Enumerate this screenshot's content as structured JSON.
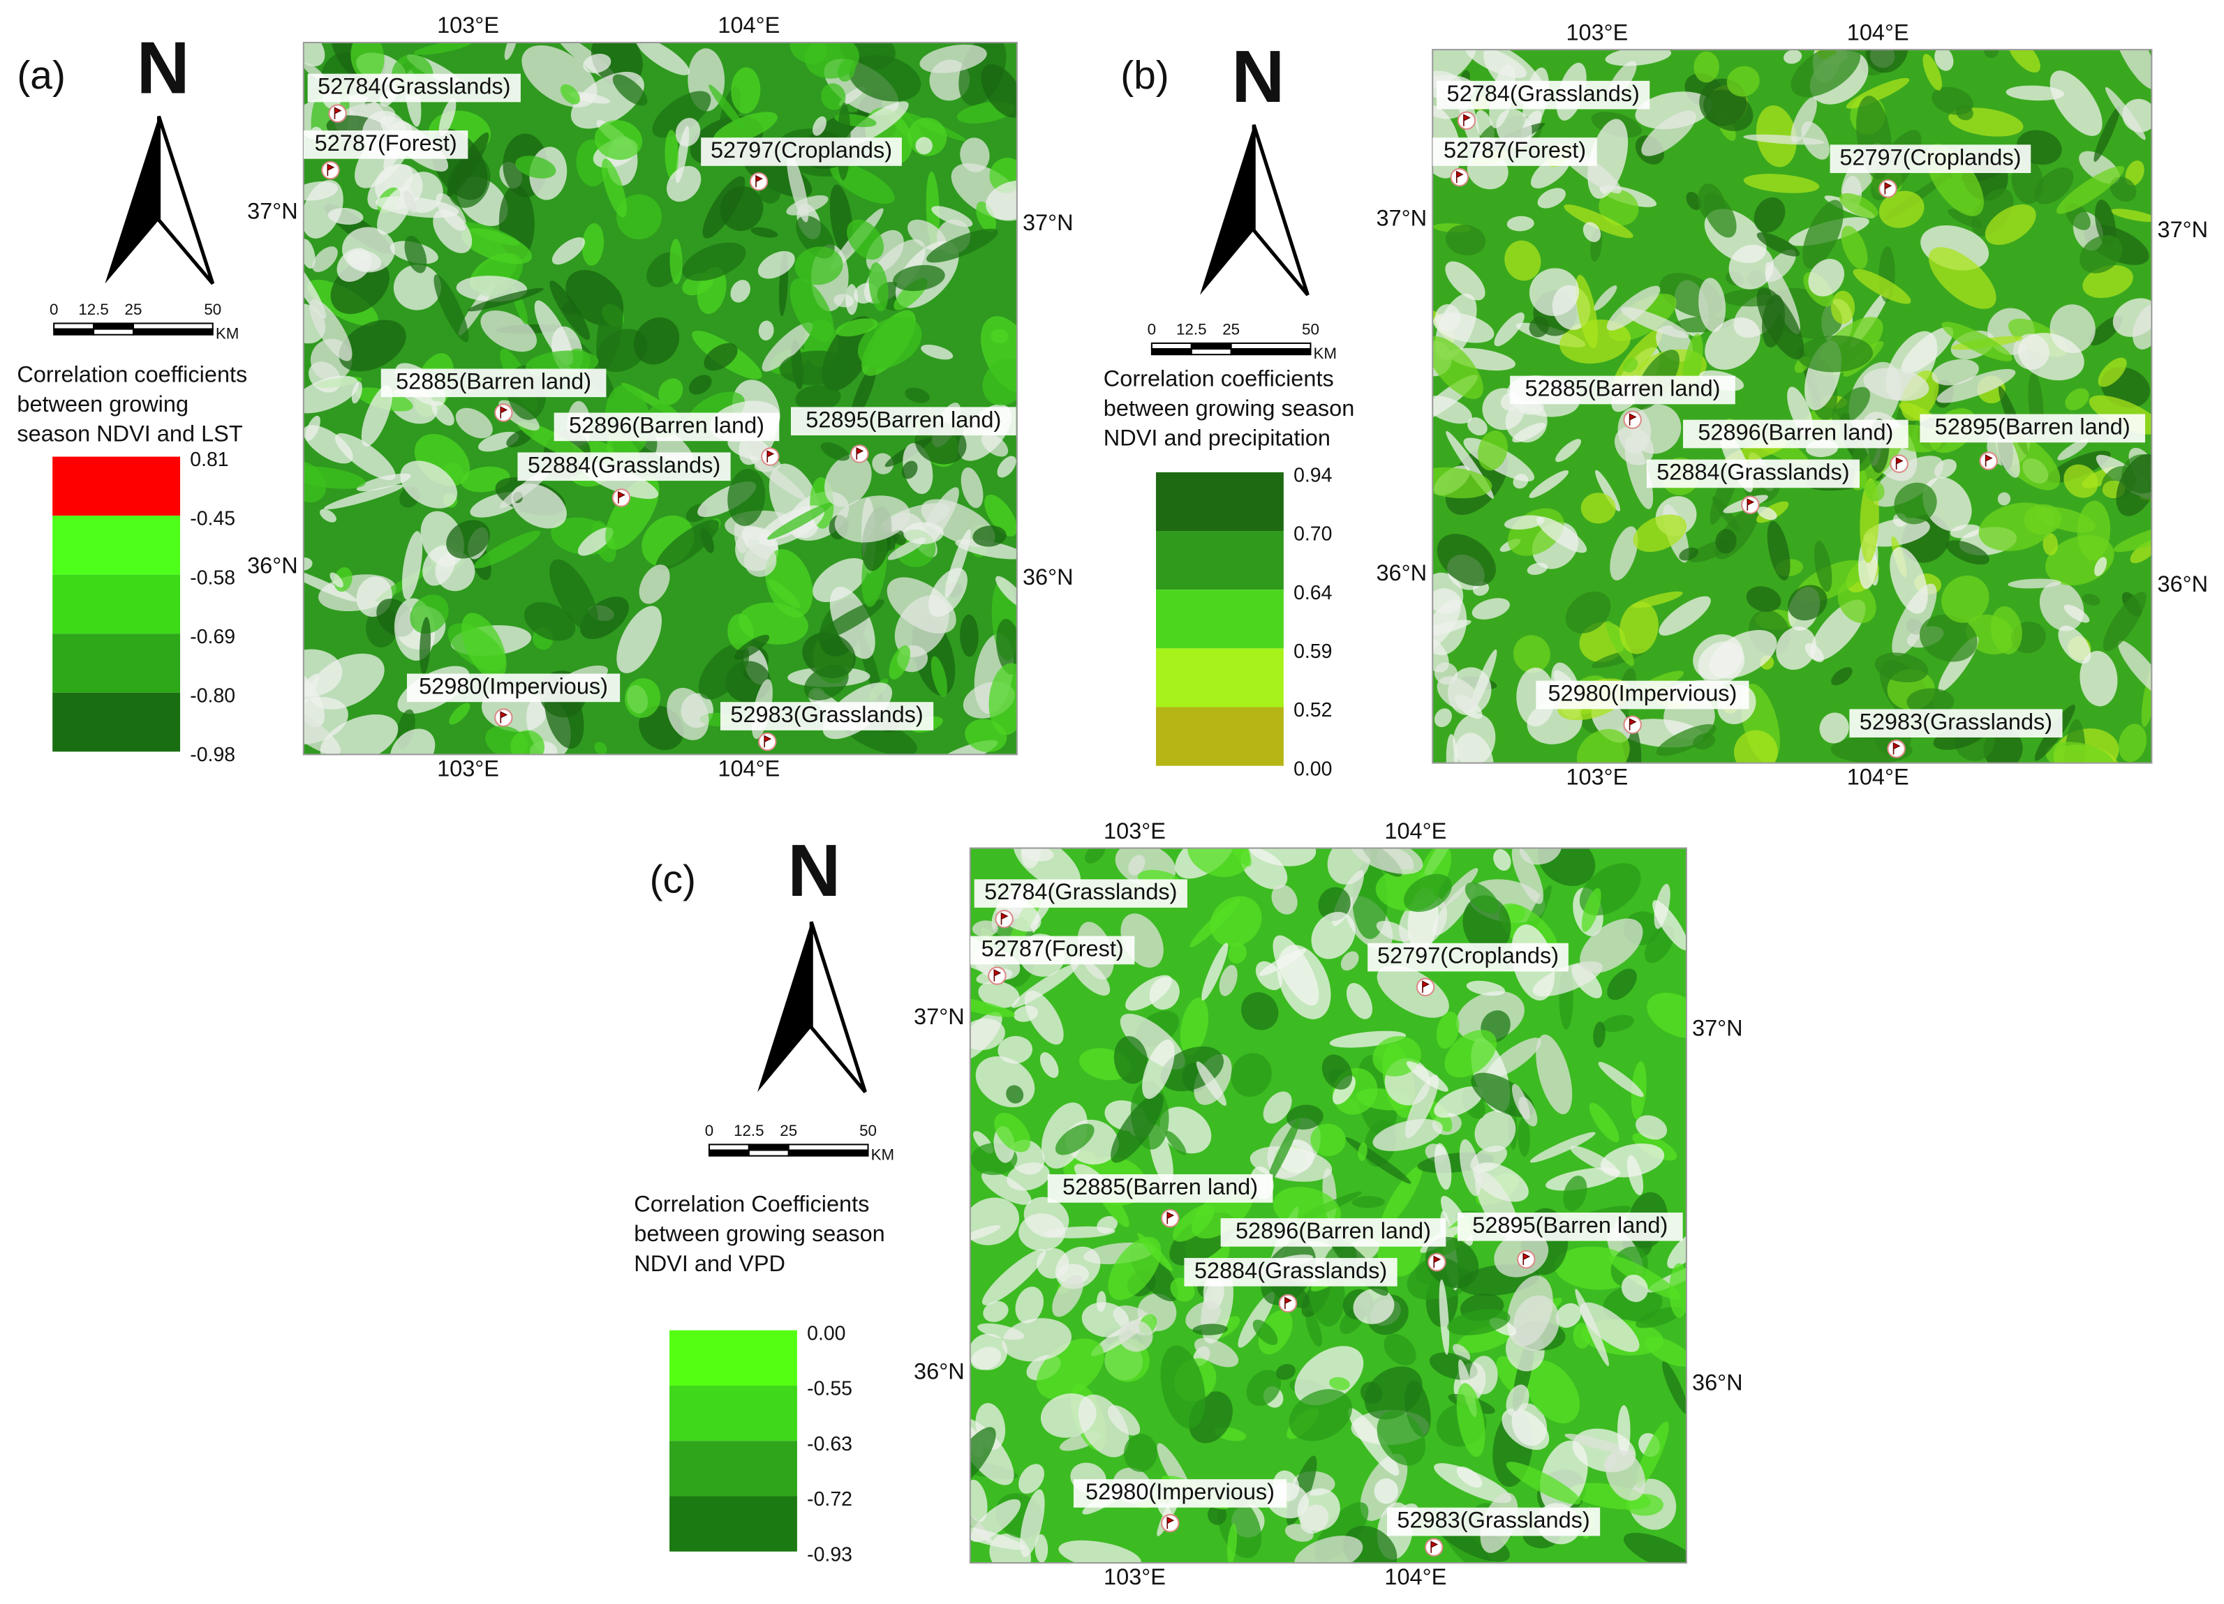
{
  "panels": [
    {
      "label": "(a)",
      "north": "N",
      "scale_bar": {
        "ticks": [
          "0",
          "12.5",
          "25",
          "50"
        ],
        "unit": "KM"
      },
      "legend": {
        "title": [
          "Correlation coefficients",
          "between growing",
          "season NDVI and LST"
        ],
        "breaks": [
          "0.81",
          "-0.45",
          "-0.58",
          "-0.69",
          "-0.80",
          "-0.98"
        ],
        "colors": [
          "#ff0000",
          "#4dff1a",
          "#3dda18",
          "#2ca818",
          "#1a6e12"
        ]
      },
      "map": {
        "lon_labels": [
          "103°E",
          "104°E"
        ],
        "lat_labels": [
          "37°N",
          "36°N"
        ],
        "stations": [
          "52784(Grasslands)",
          "52787(Forest)",
          "52797(Croplands)",
          "52885(Barren land)",
          "52896(Barren land)",
          "52895(Barren land)",
          "52884(Grasslands)",
          "52980(Impervious)",
          "52983(Grasslands)"
        ]
      }
    },
    {
      "label": "(b)",
      "north": "N",
      "scale_bar": {
        "ticks": [
          "0",
          "12.5",
          "25",
          "50"
        ],
        "unit": "KM"
      },
      "legend": {
        "title": [
          "Correlation coefficients",
          "between growing season",
          "NDVI and precipitation"
        ],
        "breaks": [
          "0.94",
          "0.70",
          "0.64",
          "0.59",
          "0.52",
          "0.00"
        ],
        "colors": [
          "#1e6a12",
          "#2f9a1b",
          "#4cd61e",
          "#a6f21a",
          "#b5b515"
        ]
      },
      "map": {
        "lon_labels": [
          "103°E",
          "104°E"
        ],
        "lat_labels": [
          "37°N",
          "36°N"
        ],
        "stations": [
          "52784(Grasslands)",
          "52787(Forest)",
          "52797(Croplands)",
          "52885(Barren land)",
          "52896(Barren land)",
          "52895(Barren land)",
          "52884(Grasslands)",
          "52980(Impervious)",
          "52983(Grasslands)"
        ]
      }
    },
    {
      "label": "(c)",
      "north": "N",
      "scale_bar": {
        "ticks": [
          "0",
          "12.5",
          "25",
          "50"
        ],
        "unit": "KM"
      },
      "legend": {
        "title": [
          "Correlation Coefficients",
          "between growing season",
          "NDVI and VPD"
        ],
        "breaks": [
          "0.00",
          "-0.55",
          "-0.63",
          "-0.72",
          "-0.93"
        ],
        "colors": [
          "#55ff12",
          "#3fd81a",
          "#2ea51a",
          "#1c7a12"
        ]
      },
      "map": {
        "lon_labels": [
          "103°E",
          "104°E"
        ],
        "lat_labels": [
          "37°N",
          "36°N"
        ],
        "stations": [
          "52784(Grasslands)",
          "52787(Forest)",
          "52797(Croplands)",
          "52885(Barren land)",
          "52896(Barren land)",
          "52895(Barren land)",
          "52884(Grasslands)",
          "52980(Impervious)",
          "52983(Grasslands)"
        ]
      }
    }
  ]
}
